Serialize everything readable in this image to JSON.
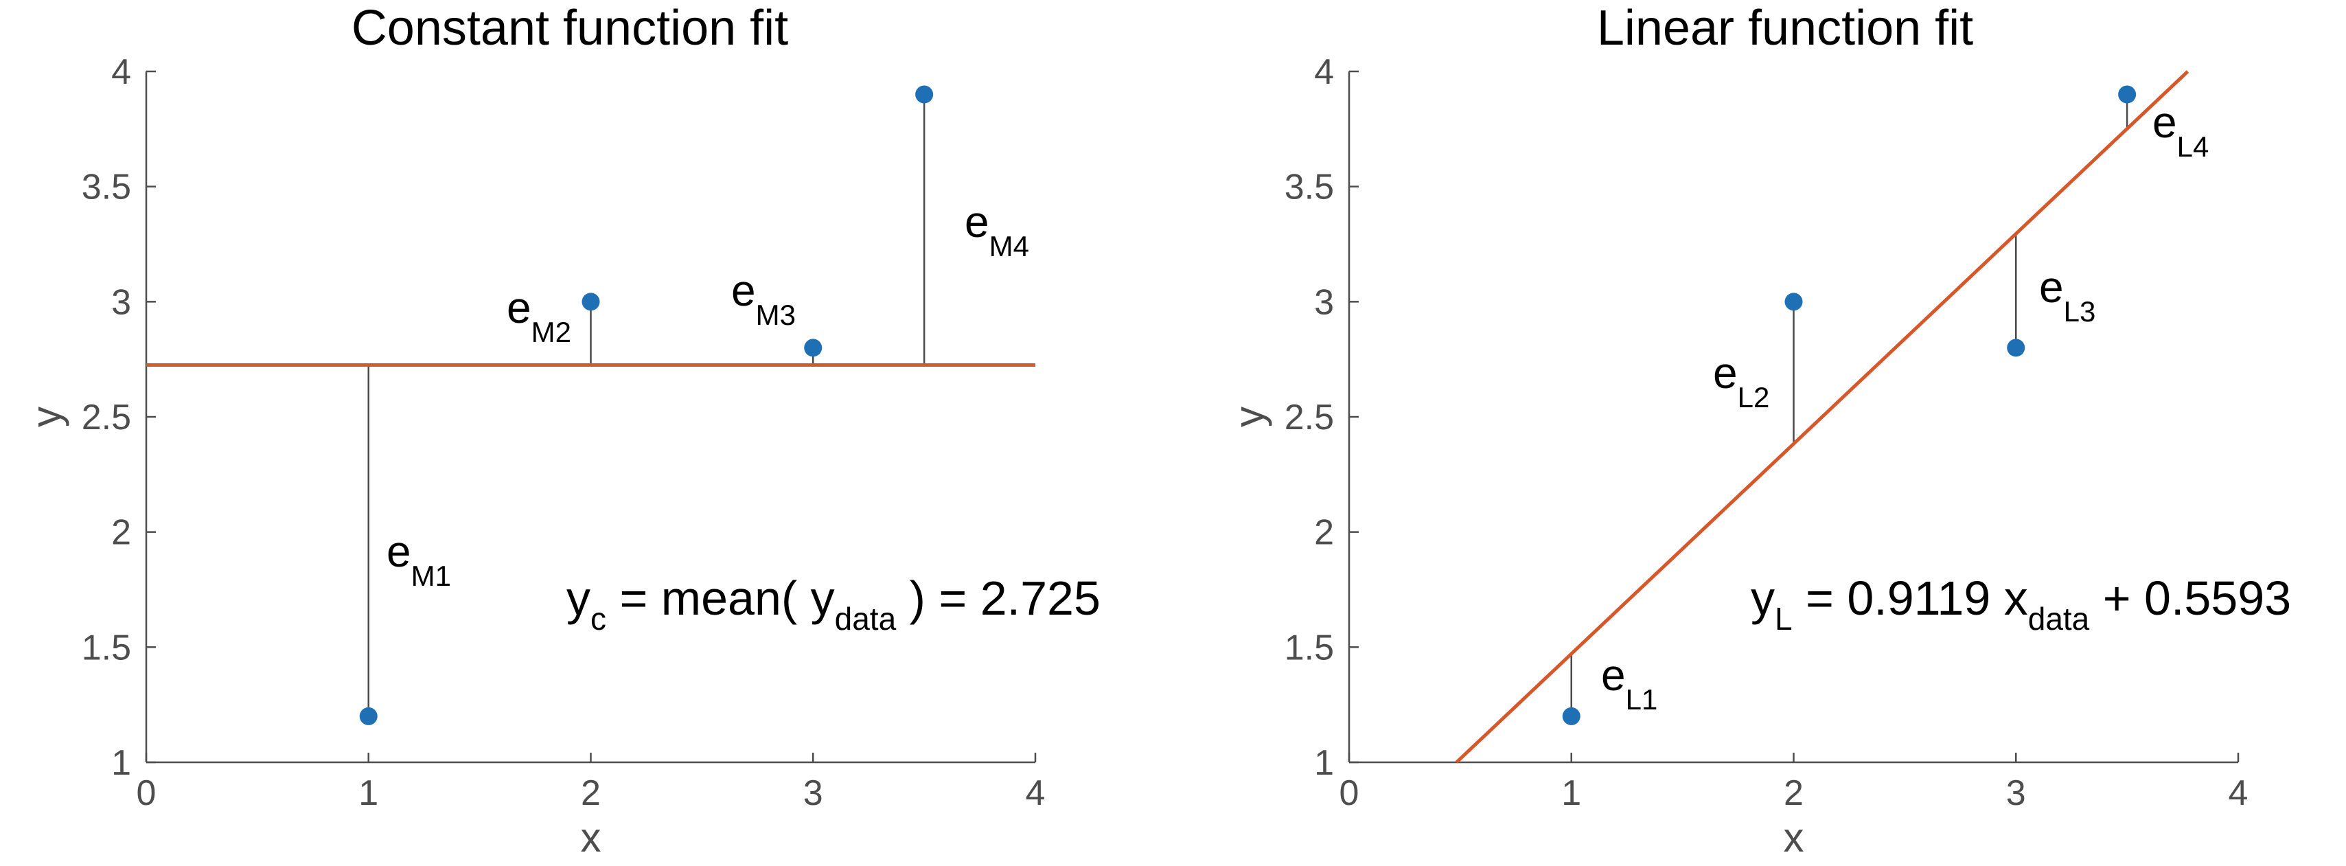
{
  "chart_data": [
    {
      "id": "left",
      "type": "scatter",
      "title": "Constant function fit",
      "xlabel": "x",
      "ylabel": "y",
      "xlim": [
        0,
        4
      ],
      "ylim": [
        1,
        4
      ],
      "xticks": [
        0,
        1,
        2,
        3,
        4
      ],
      "xtick_labels": [
        "0",
        "1",
        "2",
        "3",
        "4"
      ],
      "yticks": [
        1,
        1.5,
        2,
        2.5,
        3,
        3.5,
        4
      ],
      "ytick_labels": [
        "1",
        "1.5",
        "2",
        "2.5",
        "3",
        "3.5",
        "4"
      ],
      "points": {
        "x": [
          1,
          2,
          3,
          3.5
        ],
        "y": [
          1.2,
          3.0,
          2.8,
          3.9
        ]
      },
      "fit": {
        "kind": "constant",
        "value": 2.725,
        "x_range": [
          0,
          4
        ]
      },
      "residual_labels": [
        {
          "main": "e",
          "sub": "M1"
        },
        {
          "main": "e",
          "sub": "M2"
        },
        {
          "main": "e",
          "sub": "M3"
        },
        {
          "main": "e",
          "sub": "M4"
        }
      ],
      "equation": {
        "lhs": "y",
        "lhs_sub": "c",
        "mid": " = mean( y",
        "mid_sub": "data",
        "rhs": " ) = 2.725"
      },
      "colors": {
        "points": "#1f6fb5",
        "fit": "#d6582a",
        "residual": "#4a4a4a",
        "axis": "#4d4d4d"
      }
    },
    {
      "id": "right",
      "type": "scatter",
      "title": "Linear function fit",
      "xlabel": "x",
      "ylabel": "y",
      "xlim": [
        0,
        4
      ],
      "ylim": [
        1,
        4
      ],
      "xticks": [
        0,
        1,
        2,
        3,
        4
      ],
      "xtick_labels": [
        "0",
        "1",
        "2",
        "3",
        "4"
      ],
      "yticks": [
        1,
        1.5,
        2,
        2.5,
        3,
        3.5,
        4
      ],
      "ytick_labels": [
        "1",
        "1.5",
        "2",
        "2.5",
        "3",
        "3.5",
        "4"
      ],
      "points": {
        "x": [
          1,
          2,
          3,
          3.5
        ],
        "y": [
          1.2,
          3.0,
          2.8,
          3.9
        ]
      },
      "fit": {
        "kind": "linear",
        "slope": 0.9119,
        "intercept": 0.5593,
        "x_range": [
          0.4833,
          3.7728
        ]
      },
      "residual_labels": [
        {
          "main": "e",
          "sub": "L1"
        },
        {
          "main": "e",
          "sub": "L2"
        },
        {
          "main": "e",
          "sub": "L3"
        },
        {
          "main": "e",
          "sub": "L4"
        }
      ],
      "equation": {
        "lhs": "y",
        "lhs_sub": "L",
        "mid": " = 0.9119 x",
        "mid_sub": "data",
        "rhs": " + 0.5593"
      },
      "colors": {
        "points": "#1f6fb5",
        "fit": "#d6582a",
        "residual": "#4a4a4a",
        "axis": "#4d4d4d"
      }
    }
  ]
}
